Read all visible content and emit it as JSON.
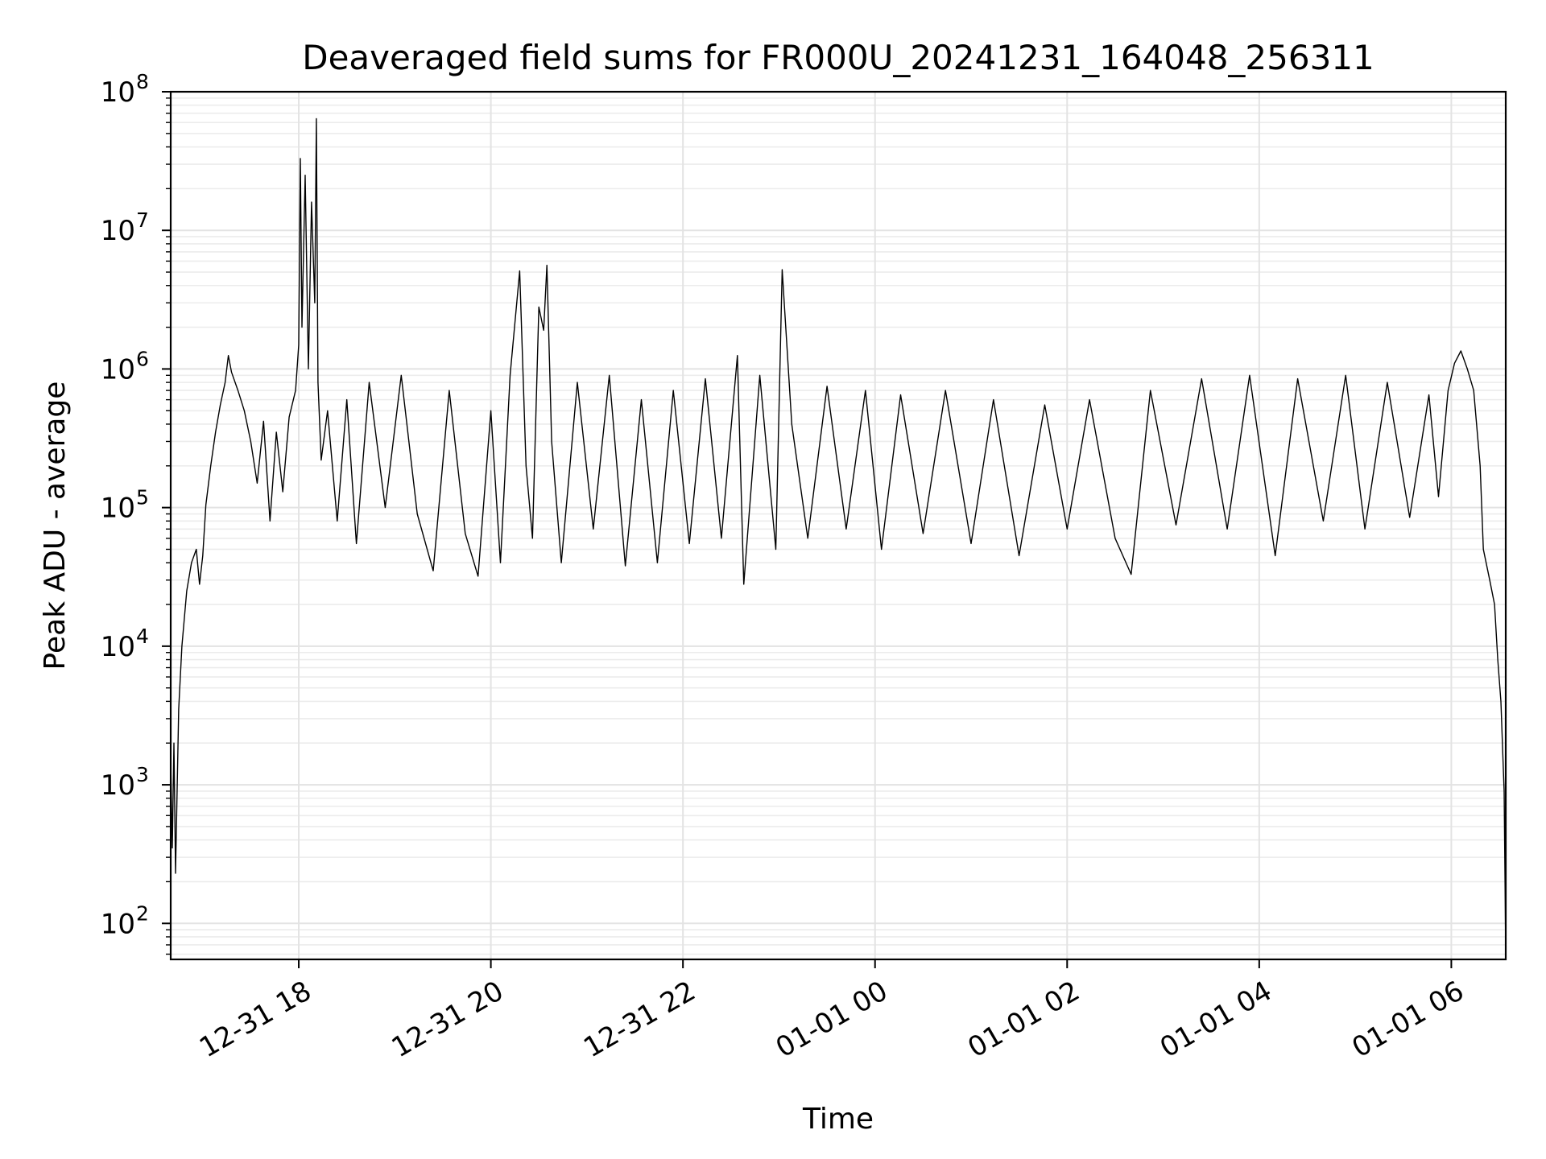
{
  "chart_data": {
    "type": "line",
    "title": "Deaveraged field sums for FR000U_20241231_164048_256311",
    "xlabel": "Time",
    "ylabel": "Peak ADU - average",
    "yscale": "log",
    "xlim": [
      "2024-12-31 16:40",
      "2025-01-01 06:34"
    ],
    "ylim": [
      55,
      100000000
    ],
    "grid": true,
    "x_ticks": [
      {
        "value": "2024-12-31 18:00",
        "label": "12-31 18"
      },
      {
        "value": "2024-12-31 20:00",
        "label": "12-31 20"
      },
      {
        "value": "2024-12-31 22:00",
        "label": "12-31 22"
      },
      {
        "value": "2025-01-01 00:00",
        "label": "01-01 00"
      },
      {
        "value": "2025-01-01 02:00",
        "label": "01-01 02"
      },
      {
        "value": "2025-01-01 04:00",
        "label": "01-01 04"
      },
      {
        "value": "2025-01-01 06:00",
        "label": "01-01 06"
      }
    ],
    "y_ticks": [
      {
        "value": 100,
        "base": "10",
        "exp": "2"
      },
      {
        "value": 1000,
        "base": "10",
        "exp": "3"
      },
      {
        "value": 10000,
        "base": "10",
        "exp": "4"
      },
      {
        "value": 100000,
        "base": "10",
        "exp": "5"
      },
      {
        "value": 1000000,
        "base": "10",
        "exp": "6"
      },
      {
        "value": 10000000,
        "base": "10",
        "exp": "7"
      },
      {
        "value": 100000000,
        "base": "10",
        "exp": "8"
      }
    ],
    "series": [
      {
        "color": "#000000",
        "points": [
          [
            "2024-12-31 16:40",
            1500
          ],
          [
            "2024-12-31 16:41",
            350
          ],
          [
            "2024-12-31 16:42",
            2000
          ],
          [
            "2024-12-31 16:43",
            230
          ],
          [
            "2024-12-31 16:45",
            3500
          ],
          [
            "2024-12-31 16:47",
            10000
          ],
          [
            "2024-12-31 16:50",
            25000
          ],
          [
            "2024-12-31 16:53",
            40000
          ],
          [
            "2024-12-31 16:56",
            50000
          ],
          [
            "2024-12-31 16:58",
            28000
          ],
          [
            "2024-12-31 17:00",
            45000
          ],
          [
            "2024-12-31 17:02",
            105000
          ],
          [
            "2024-12-31 17:05",
            200000
          ],
          [
            "2024-12-31 17:08",
            350000
          ],
          [
            "2024-12-31 17:11",
            550000
          ],
          [
            "2024-12-31 17:14",
            800000
          ],
          [
            "2024-12-31 17:16",
            1250000
          ],
          [
            "2024-12-31 17:18",
            950000
          ],
          [
            "2024-12-31 17:22",
            700000
          ],
          [
            "2024-12-31 17:26",
            500000
          ],
          [
            "2024-12-31 17:30",
            300000
          ],
          [
            "2024-12-31 17:34",
            150000
          ],
          [
            "2024-12-31 17:38",
            420000
          ],
          [
            "2024-12-31 17:42",
            80000
          ],
          [
            "2024-12-31 17:46",
            350000
          ],
          [
            "2024-12-31 17:50",
            130000
          ],
          [
            "2024-12-31 17:54",
            450000
          ],
          [
            "2024-12-31 17:58",
            700000
          ],
          [
            "2024-12-31 18:00",
            1500000
          ],
          [
            "2024-12-31 18:01",
            33000000
          ],
          [
            "2024-12-31 18:02",
            2000000
          ],
          [
            "2024-12-31 18:04",
            25000000
          ],
          [
            "2024-12-31 18:06",
            1000000
          ],
          [
            "2024-12-31 18:08",
            16000000
          ],
          [
            "2024-12-31 18:10",
            3000000
          ],
          [
            "2024-12-31 18:11",
            64000000
          ],
          [
            "2024-12-31 18:12",
            800000
          ],
          [
            "2024-12-31 18:14",
            220000
          ],
          [
            "2024-12-31 18:18",
            500000
          ],
          [
            "2024-12-31 18:24",
            80000
          ],
          [
            "2024-12-31 18:30",
            600000
          ],
          [
            "2024-12-31 18:36",
            55000
          ],
          [
            "2024-12-31 18:44",
            800000
          ],
          [
            "2024-12-31 18:54",
            100000
          ],
          [
            "2024-12-31 19:04",
            900000
          ],
          [
            "2024-12-31 19:14",
            90000
          ],
          [
            "2024-12-31 19:24",
            35000
          ],
          [
            "2024-12-31 19:34",
            700000
          ],
          [
            "2024-12-31 19:44",
            65000
          ],
          [
            "2024-12-31 19:52",
            32000
          ],
          [
            "2024-12-31 20:00",
            500000
          ],
          [
            "2024-12-31 20:06",
            40000
          ],
          [
            "2024-12-31 20:12",
            900000
          ],
          [
            "2024-12-31 20:18",
            5100000
          ],
          [
            "2024-12-31 20:22",
            200000
          ],
          [
            "2024-12-31 20:26",
            60000
          ],
          [
            "2024-12-31 20:30",
            2800000
          ],
          [
            "2024-12-31 20:33",
            1900000
          ],
          [
            "2024-12-31 20:35",
            5600000
          ],
          [
            "2024-12-31 20:38",
            300000
          ],
          [
            "2024-12-31 20:44",
            40000
          ],
          [
            "2024-12-31 20:54",
            800000
          ],
          [
            "2024-12-31 21:04",
            70000
          ],
          [
            "2024-12-31 21:14",
            900000
          ],
          [
            "2024-12-31 21:24",
            38000
          ],
          [
            "2024-12-31 21:34",
            600000
          ],
          [
            "2024-12-31 21:44",
            40000
          ],
          [
            "2024-12-31 21:54",
            700000
          ],
          [
            "2024-12-31 22:04",
            55000
          ],
          [
            "2024-12-31 22:14",
            850000
          ],
          [
            "2024-12-31 22:24",
            60000
          ],
          [
            "2024-12-31 22:34",
            1250000
          ],
          [
            "2024-12-31 22:38",
            28000
          ],
          [
            "2024-12-31 22:48",
            900000
          ],
          [
            "2024-12-31 22:58",
            50000
          ],
          [
            "2024-12-31 23:02",
            5200000
          ],
          [
            "2024-12-31 23:08",
            400000
          ],
          [
            "2024-12-31 23:18",
            60000
          ],
          [
            "2024-12-31 23:30",
            750000
          ],
          [
            "2024-12-31 23:42",
            70000
          ],
          [
            "2024-12-31 23:54",
            700000
          ],
          [
            "2025-01-01 00:04",
            50000
          ],
          [
            "2025-01-01 00:16",
            650000
          ],
          [
            "2025-01-01 00:30",
            65000
          ],
          [
            "2025-01-01 00:44",
            700000
          ],
          [
            "2025-01-01 01:00",
            55000
          ],
          [
            "2025-01-01 01:14",
            600000
          ],
          [
            "2025-01-01 01:30",
            45000
          ],
          [
            "2025-01-01 01:46",
            550000
          ],
          [
            "2025-01-01 02:00",
            70000
          ],
          [
            "2025-01-01 02:14",
            600000
          ],
          [
            "2025-01-01 02:30",
            60000
          ],
          [
            "2025-01-01 02:40",
            33000
          ],
          [
            "2025-01-01 02:52",
            700000
          ],
          [
            "2025-01-01 03:08",
            75000
          ],
          [
            "2025-01-01 03:24",
            850000
          ],
          [
            "2025-01-01 03:40",
            70000
          ],
          [
            "2025-01-01 03:54",
            900000
          ],
          [
            "2025-01-01 04:10",
            45000
          ],
          [
            "2025-01-01 04:24",
            850000
          ],
          [
            "2025-01-01 04:40",
            80000
          ],
          [
            "2025-01-01 04:54",
            900000
          ],
          [
            "2025-01-01 05:06",
            70000
          ],
          [
            "2025-01-01 05:20",
            800000
          ],
          [
            "2025-01-01 05:34",
            85000
          ],
          [
            "2025-01-01 05:46",
            650000
          ],
          [
            "2025-01-01 05:52",
            120000
          ],
          [
            "2025-01-01 05:58",
            700000
          ],
          [
            "2025-01-01 06:02",
            1100000
          ],
          [
            "2025-01-01 06:06",
            1350000
          ],
          [
            "2025-01-01 06:10",
            1000000
          ],
          [
            "2025-01-01 06:14",
            700000
          ],
          [
            "2025-01-01 06:18",
            200000
          ],
          [
            "2025-01-01 06:20",
            50000
          ],
          [
            "2025-01-01 06:24",
            30000
          ],
          [
            "2025-01-01 06:27",
            20000
          ],
          [
            "2025-01-01 06:29",
            8000
          ],
          [
            "2025-01-01 06:31",
            4000
          ],
          [
            "2025-01-01 06:33",
            900
          ],
          [
            "2025-01-01 06:34",
            60
          ]
        ]
      }
    ]
  }
}
